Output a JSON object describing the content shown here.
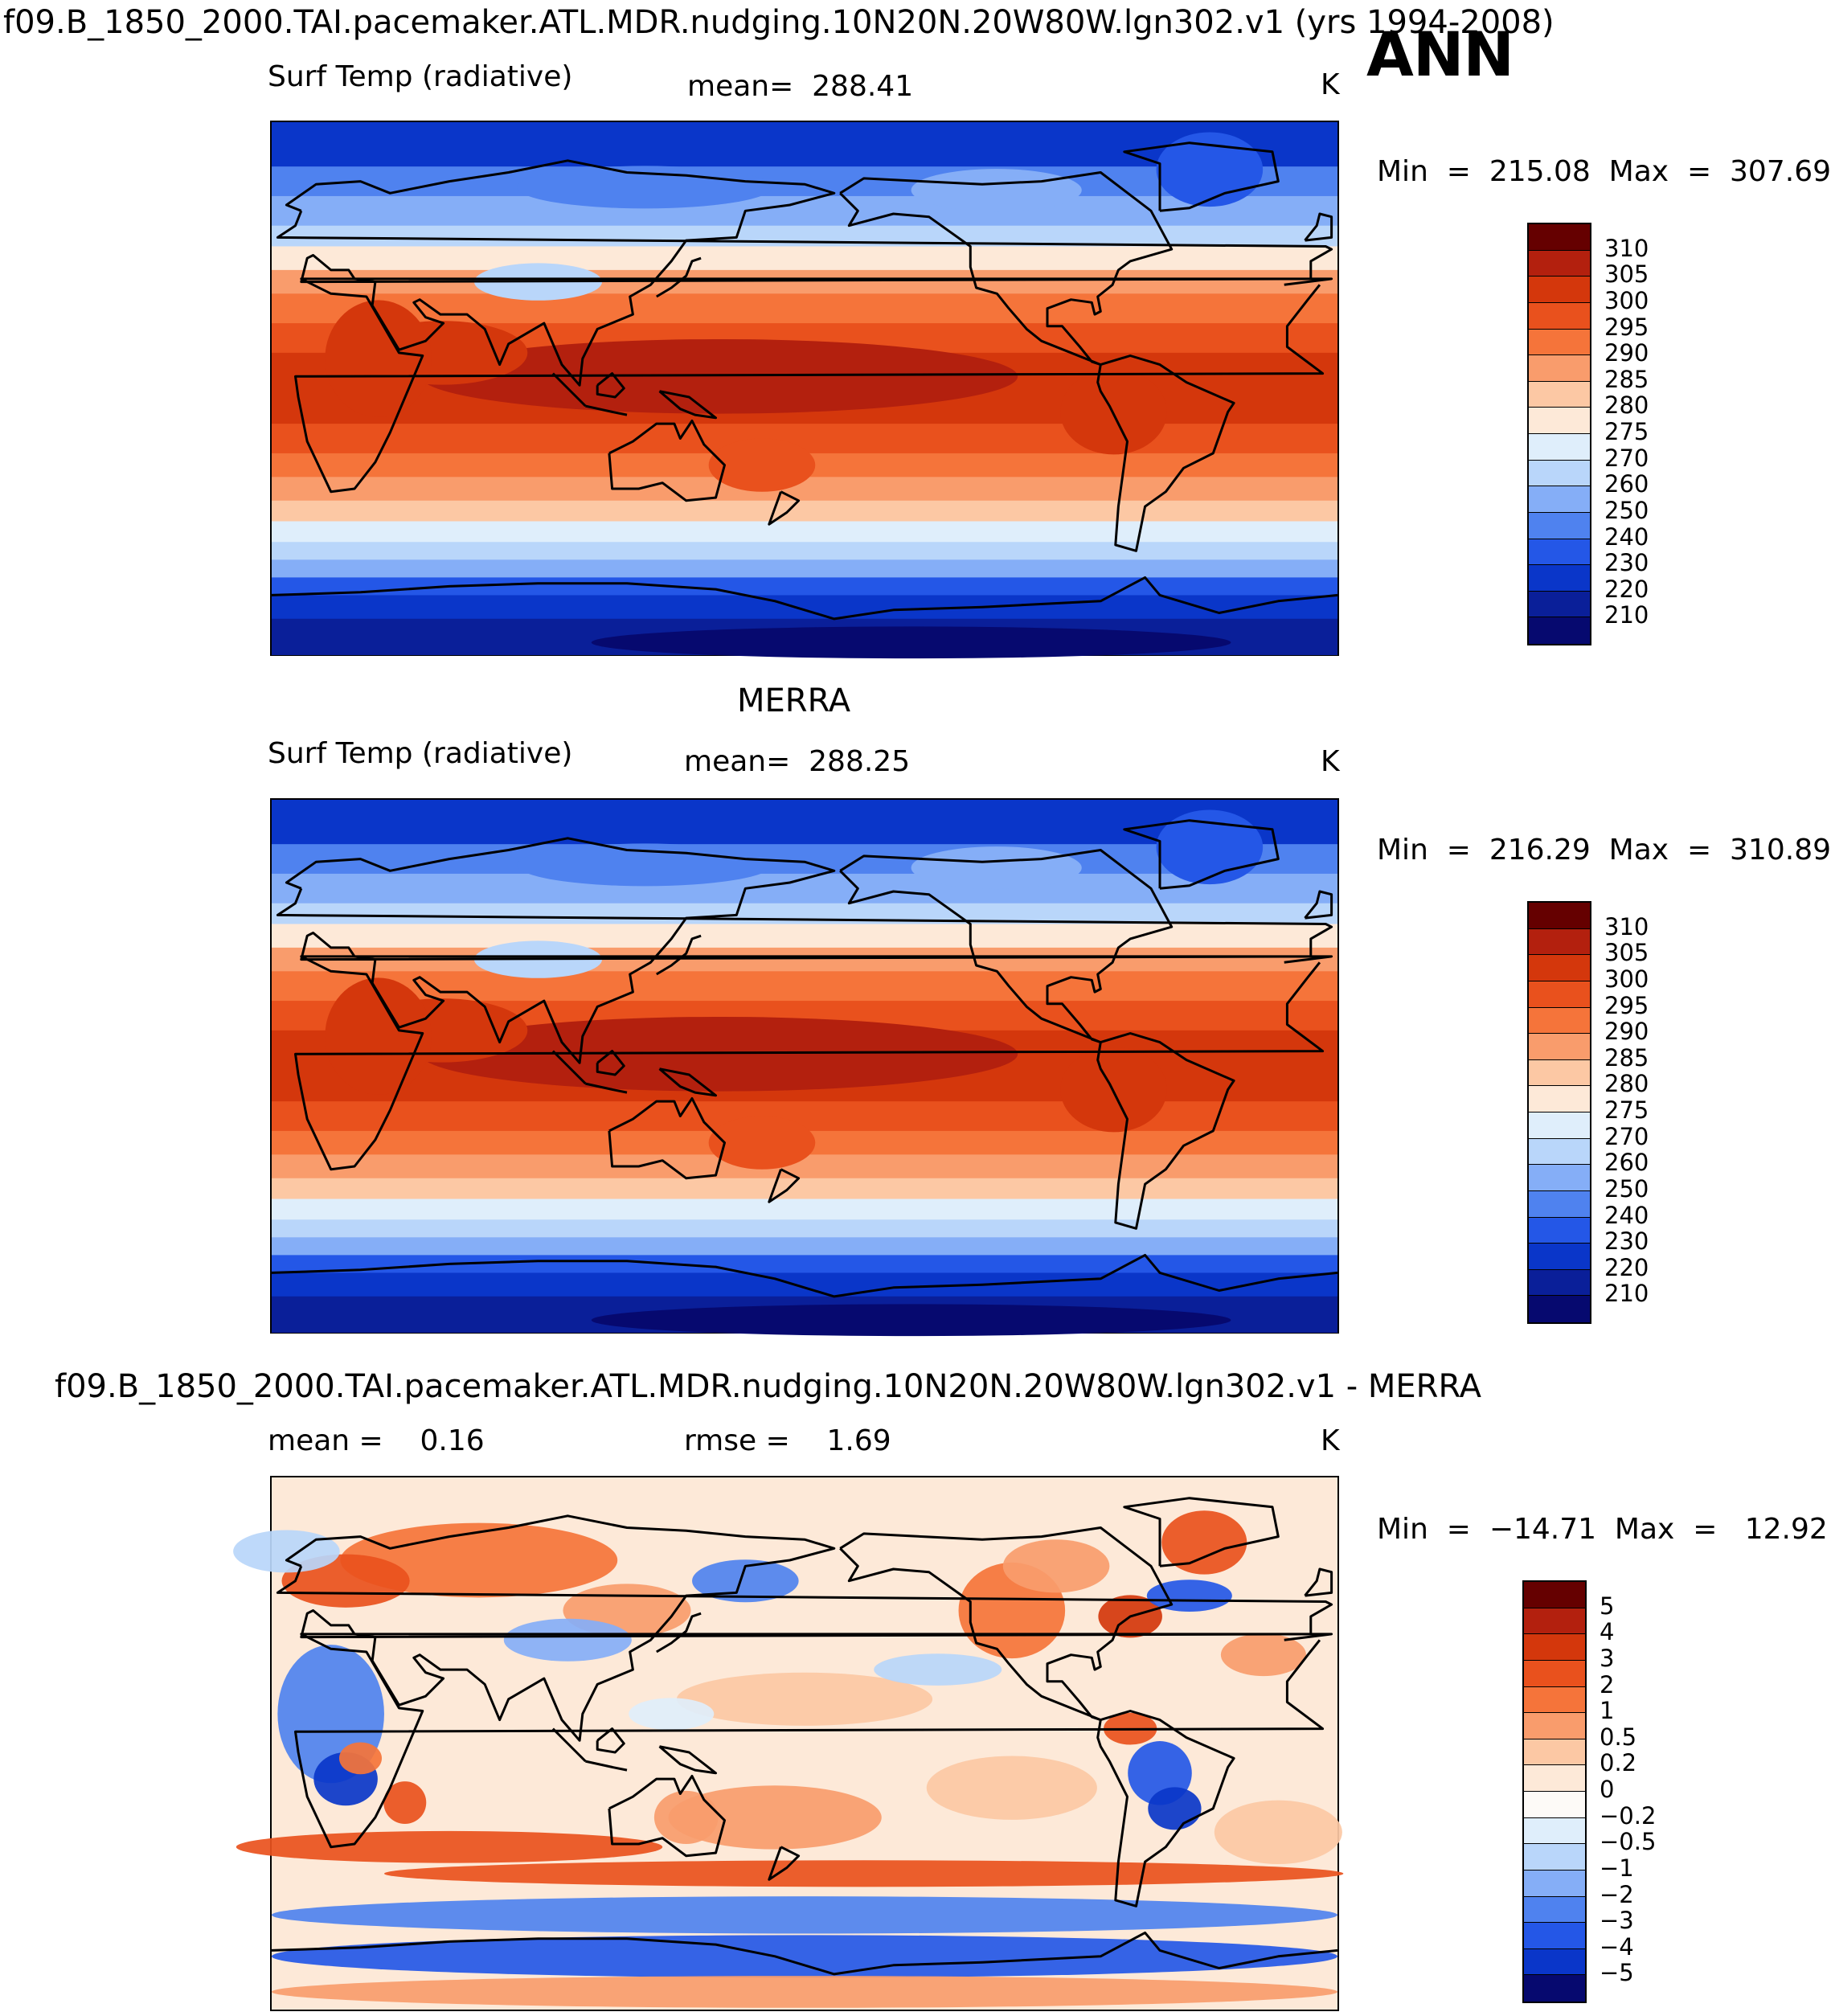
{
  "header": {
    "title": "f09.B_1850_2000.TAI.pacemaker.ATL.MDR.nudging.10N20N.20W80W.lgn302.v1 (yrs 1994-2008)",
    "season": "ANN"
  },
  "chart_data": [
    {
      "type": "heatmap",
      "name": "model",
      "panel_title": "",
      "field_label": "Surf Temp (radiative)",
      "stat_label": "mean=  288.41",
      "units": "K",
      "minmax": "Min  =  215.08  Max  =  307.69",
      "min": 215.08,
      "max": 307.69,
      "mean": 288.41,
      "levels": [
        "310",
        "305",
        "300",
        "295",
        "290",
        "285",
        "280",
        "275",
        "270",
        "260",
        "250",
        "240",
        "230",
        "220",
        "210"
      ],
      "colors": [
        "#650000",
        "#b3200e",
        "#d4370c",
        "#e9511d",
        "#f5743a",
        "#f99c6c",
        "#fcc8a4",
        "#fde9d8",
        "#dfeefb",
        "#b9d6fa",
        "#85aef7",
        "#4f82ef",
        "#2457e7",
        "#0a36c9",
        "#0a1f99",
        "#06096f"
      ]
    },
    {
      "type": "heatmap",
      "name": "obs",
      "panel_title": "MERRA",
      "field_label": "Surf Temp (radiative)",
      "stat_label": "mean=  288.25",
      "units": "K",
      "minmax": "Min  =  216.29  Max  =  310.89",
      "min": 216.29,
      "max": 310.89,
      "mean": 288.25,
      "levels": [
        "310",
        "305",
        "300",
        "295",
        "290",
        "285",
        "280",
        "275",
        "270",
        "260",
        "250",
        "240",
        "230",
        "220",
        "210"
      ],
      "colors": [
        "#650000",
        "#b3200e",
        "#d4370c",
        "#e9511d",
        "#f5743a",
        "#f99c6c",
        "#fcc8a4",
        "#fde9d8",
        "#dfeefb",
        "#b9d6fa",
        "#85aef7",
        "#4f82ef",
        "#2457e7",
        "#0a36c9",
        "#0a1f99",
        "#06096f"
      ]
    },
    {
      "type": "heatmap",
      "name": "diff",
      "panel_title": "f09.B_1850_2000.TAI.pacemaker.ATL.MDR.nudging.10N20N.20W80W.lgn302.v1 - MERRA",
      "mean_label": "mean =    0.16",
      "rmse_label": "rmse =    1.69",
      "units": "K",
      "minmax": "Min  =  −14.71  Max  =   12.92",
      "min": -14.71,
      "max": 12.92,
      "mean": 0.16,
      "rmse": 1.69,
      "levels": [
        "5",
        "4",
        "3",
        "2",
        "1",
        "0.5",
        "0.2",
        "0",
        "−0.2",
        "−0.5",
        "−1",
        "−2",
        "−3",
        "−4",
        "−5"
      ],
      "colors": [
        "#650000",
        "#b3200e",
        "#d4370c",
        "#e9511d",
        "#f5743a",
        "#f99c6c",
        "#fcc8a4",
        "#fde9d8",
        "#fdfaf7",
        "#dfeefb",
        "#b9d6fa",
        "#85aef7",
        "#4f82ef",
        "#2457e7",
        "#0a36c9",
        "#06096f"
      ]
    }
  ]
}
